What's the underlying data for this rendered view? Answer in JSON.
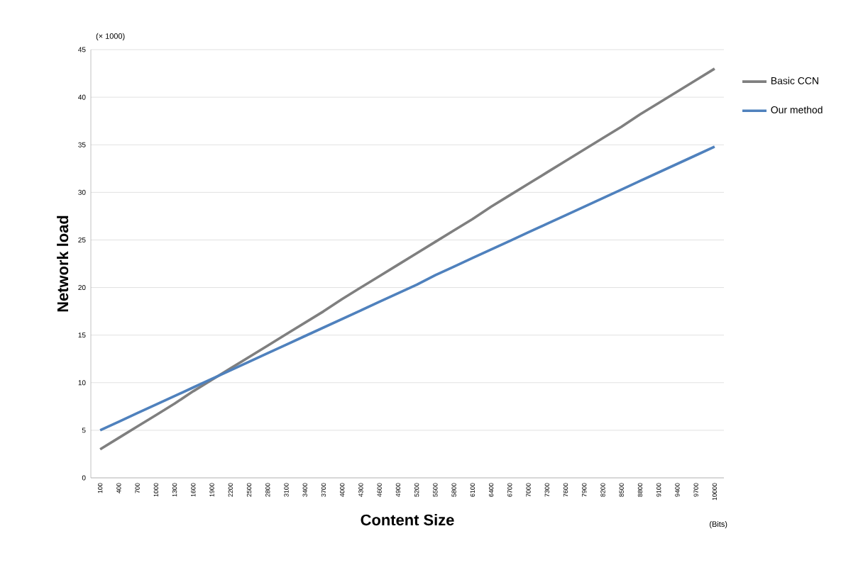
{
  "chart_data": {
    "type": "line",
    "xlabel": "Content Size",
    "ylabel": "Network load",
    "annotations": [
      "(× 1000)",
      "(Bits)"
    ],
    "categories": [
      "100",
      "400",
      "700",
      "1000",
      "1300",
      "1600",
      "1900",
      "2200",
      "2500",
      "2800",
      "3100",
      "3400",
      "3700",
      "4000",
      "4300",
      "4600",
      "4900",
      "5200",
      "5500",
      "5800",
      "6100",
      "6400",
      "6700",
      "7000",
      "7300",
      "7600",
      "7900",
      "8200",
      "8500",
      "8800",
      "9100",
      "9400",
      "9700",
      "10000"
    ],
    "series": [
      {
        "name": "Basic CCN",
        "color": "#7f7f7f",
        "values": [
          3.0,
          4.2,
          5.4,
          6.6,
          7.8,
          9.1,
          10.3,
          11.5,
          12.7,
          13.9,
          15.1,
          16.3,
          17.5,
          18.8,
          20.0,
          21.2,
          22.4,
          23.6,
          24.8,
          26.0,
          27.2,
          28.5,
          29.7,
          30.9,
          32.1,
          33.3,
          34.5,
          35.7,
          36.9,
          38.2,
          39.4,
          40.6,
          41.8,
          43.0
        ]
      },
      {
        "name": "Our method",
        "color": "#4f81bd",
        "values": [
          5.0,
          5.9,
          6.8,
          7.7,
          8.6,
          9.5,
          10.4,
          11.3,
          12.2,
          13.1,
          14.0,
          14.9,
          15.8,
          16.7,
          17.6,
          18.5,
          19.4,
          20.3,
          21.3,
          22.2,
          23.1,
          24.0,
          24.9,
          25.8,
          26.7,
          27.6,
          28.5,
          29.4,
          30.3,
          31.2,
          32.1,
          33.0,
          33.9,
          34.8
        ]
      }
    ],
    "ylim": [
      0,
      45
    ],
    "yticks": [
      0,
      5,
      10,
      15,
      20,
      25,
      30,
      35,
      40,
      45
    ],
    "grid": "y",
    "legend": "right",
    "marker": "none",
    "line_style": "solid"
  }
}
